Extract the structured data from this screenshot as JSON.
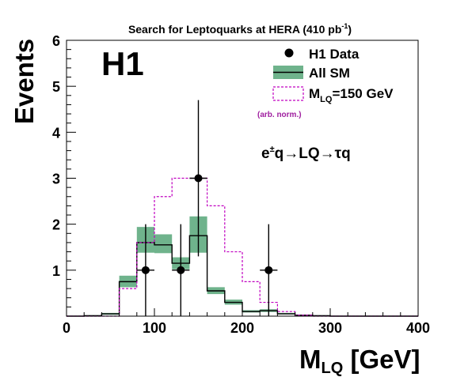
{
  "chart_data": {
    "type": "histogram",
    "title_main": "Search for Leptoquarks at HERA (410 pb",
    "title_sup": "-1",
    "title_close": ")",
    "experiment_label": "H1",
    "process": {
      "e": "e",
      "pm": "±",
      "rest": "q→LQ→τq"
    },
    "xlabel_main": "M",
    "xlabel_sub": "LQ",
    "xlabel_unit": " [GeV]",
    "ylabel": "Events",
    "xlim": [
      0,
      400
    ],
    "ylim": [
      0,
      6
    ],
    "x_ticks": [
      "0",
      "100",
      "200",
      "300",
      "400"
    ],
    "x_tick_values": [
      0,
      100,
      200,
      300,
      400
    ],
    "y_ticks": [
      "1",
      "2",
      "3",
      "4",
      "5",
      "6"
    ],
    "y_tick_values": [
      1,
      2,
      3,
      4,
      5,
      6
    ],
    "bin_edges": [
      0,
      20,
      40,
      60,
      80,
      100,
      120,
      140,
      160,
      180,
      200,
      220,
      240,
      260,
      280,
      300,
      320,
      340,
      360,
      380,
      400
    ],
    "legend": {
      "data": "H1 Data",
      "sm": "All SM",
      "lq_main": "M",
      "lq_sub": "LQ",
      "lq_rest": "=150 GeV",
      "lq_note": "(arb. norm.)"
    },
    "series": [
      {
        "name": "H1 Data",
        "kind": "points",
        "x": [
          90,
          130,
          150,
          230
        ],
        "y": [
          1,
          1,
          3,
          1
        ],
        "yerr_low": [
          1.0,
          1.0,
          1.7,
          1.0
        ],
        "yerr_high": [
          1.0,
          1.0,
          1.7,
          1.0
        ],
        "xerr": 10
      },
      {
        "name": "All SM",
        "kind": "step",
        "values": [
          0,
          0.01,
          0.05,
          0.75,
          1.6,
          1.55,
          1.15,
          1.75,
          0.55,
          0.3,
          0.1,
          0.12,
          0.05,
          0.02,
          0.01,
          0,
          0,
          0,
          0,
          0
        ],
        "band_low": [
          0,
          0,
          0.03,
          0.63,
          1.38,
          1.37,
          1.02,
          1.38,
          0.48,
          0.25,
          0.08,
          0.09,
          0.04,
          0.01,
          0,
          0,
          0,
          0,
          0,
          0
        ],
        "band_high": [
          0,
          0.02,
          0.07,
          0.88,
          1.94,
          1.78,
          1.28,
          2.17,
          0.63,
          0.36,
          0.13,
          0.15,
          0.07,
          0.03,
          0.02,
          0,
          0,
          0,
          0,
          0
        ]
      },
      {
        "name": "M_LQ=150 GeV",
        "kind": "step",
        "values": [
          0,
          0,
          0,
          0.6,
          1.6,
          2.6,
          3.0,
          3.0,
          2.4,
          1.4,
          0.75,
          0.3,
          0.1,
          0.02,
          0,
          0,
          0,
          0,
          0,
          0
        ]
      }
    ],
    "colors": {
      "band": "#6fb38c",
      "signal": "#c000c0",
      "note": "#a020a0",
      "axis": "#000000"
    }
  }
}
